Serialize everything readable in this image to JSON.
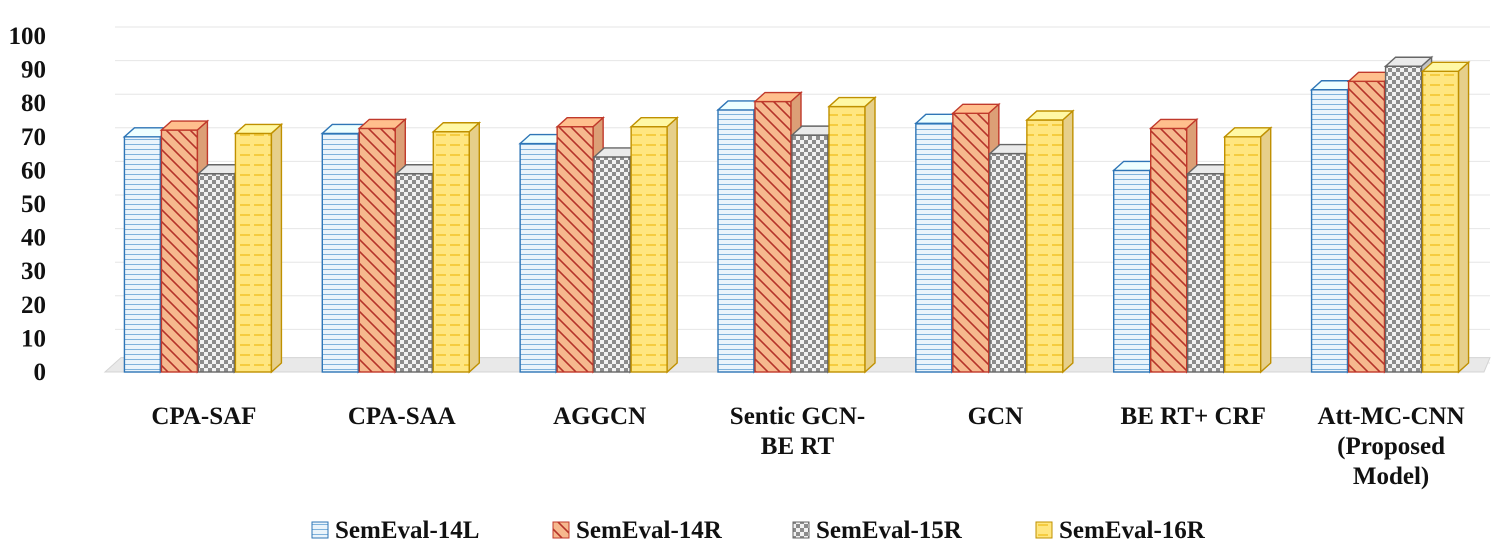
{
  "chart_data": {
    "type": "bar",
    "title": "",
    "xlabel": "",
    "ylabel": "",
    "ylim": [
      0,
      100
    ],
    "yticks": [
      0,
      10,
      20,
      30,
      40,
      50,
      60,
      70,
      80,
      90,
      100
    ],
    "grid": true,
    "legend_position": "bottom",
    "categories": [
      [
        "CPA-SAF"
      ],
      [
        "CPA-SAA"
      ],
      [
        "AGGCN"
      ],
      [
        "Sentic GCN-",
        "BE RT"
      ],
      [
        "GCN"
      ],
      [
        "BE RT+ CRF"
      ],
      [
        "Att-MC-CNN",
        "(Proposed",
        "Model)"
      ]
    ],
    "series": [
      {
        "name": "SemEval-14L",
        "values": [
          70,
          71,
          68,
          78,
          74,
          60,
          84
        ]
      },
      {
        "name": "SemEval-14R",
        "values": [
          72,
          72.5,
          73,
          80.5,
          77,
          72.5,
          86.5
        ]
      },
      {
        "name": "SemEval-15R",
        "values": [
          59,
          59,
          64,
          70.5,
          65,
          59,
          91
        ]
      },
      {
        "name": "SemEval-16R",
        "values": [
          71,
          71.5,
          73,
          79,
          75,
          70,
          89.5
        ]
      }
    ],
    "colors": {
      "SemEval-14L": {
        "fill": "#dcedf8",
        "line": "#2e75b6"
      },
      "SemEval-14R": {
        "fill": "#f4b183",
        "line": "#c0392b"
      },
      "SemEval-15R": {
        "fill": "#d9d9d9",
        "line": "#666666"
      },
      "SemEval-16R": {
        "fill": "#ffe699",
        "line": "#bf9000"
      }
    }
  }
}
